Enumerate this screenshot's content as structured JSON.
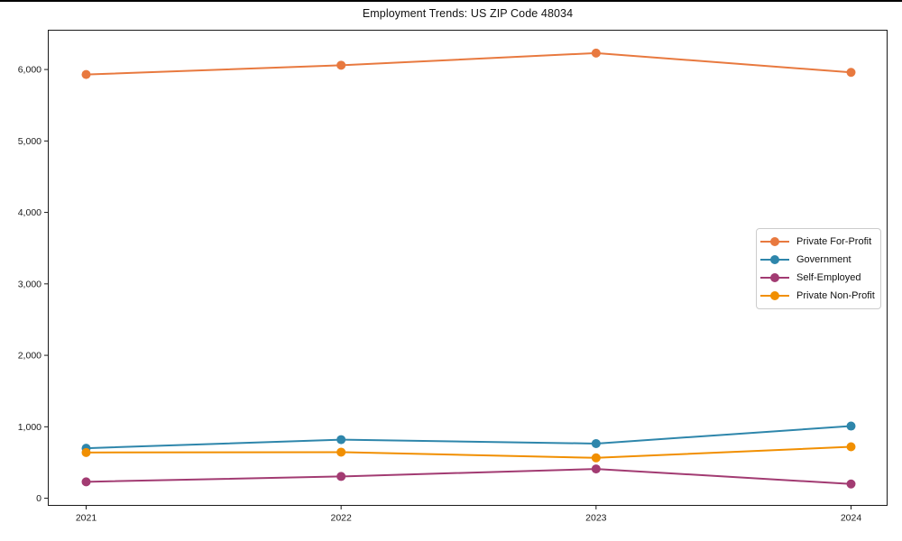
{
  "chart_data": {
    "type": "line",
    "title": "Employment Trends: US ZIP Code 48034",
    "categories": [
      "2021",
      "2022",
      "2023",
      "2024"
    ],
    "series": [
      {
        "name": "Private For-Profit",
        "color": "#e8793f",
        "values": [
          5930,
          6060,
          6230,
          5960
        ]
      },
      {
        "name": "Government",
        "color": "#2e86ab",
        "values": [
          700,
          820,
          765,
          1010
        ]
      },
      {
        "name": "Self-Employed",
        "color": "#a23b72",
        "values": [
          230,
          305,
          410,
          200
        ]
      },
      {
        "name": "Private Non-Profit",
        "color": "#f18f01",
        "values": [
          640,
          645,
          565,
          720
        ]
      }
    ],
    "xlabel": "",
    "ylabel": "",
    "ylim": [
      -100,
      6550
    ],
    "yticks": [
      0,
      1000,
      2000,
      3000,
      4000,
      5000,
      6000
    ],
    "grid": false,
    "legend_position": "center-right",
    "marker": "circle",
    "axis_color": "#1a1a1a"
  }
}
